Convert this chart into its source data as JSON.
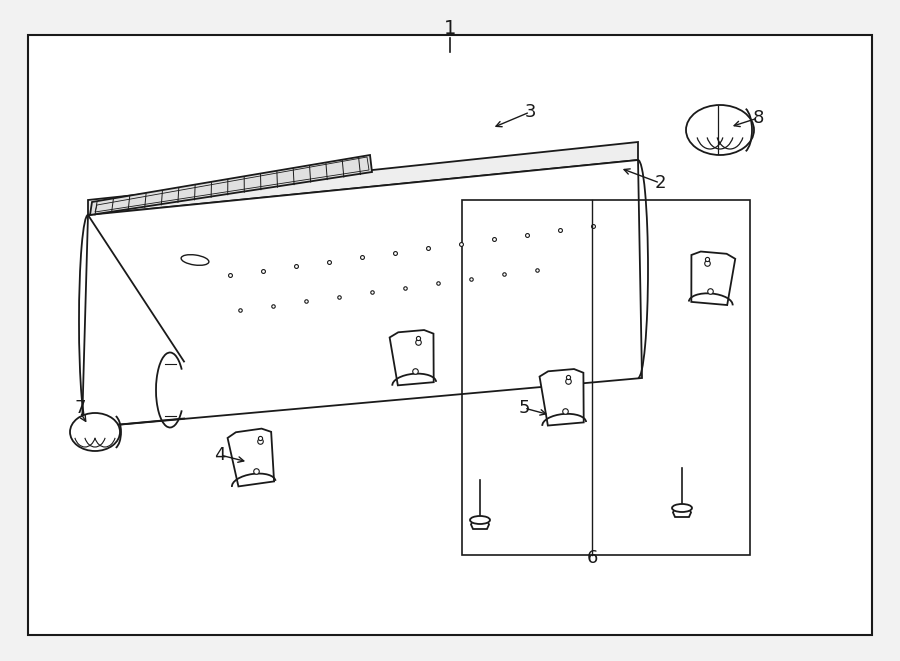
{
  "bg_color": "#f2f2f2",
  "box_bg": "#ffffff",
  "line_color": "#1a1a1a",
  "fig_width": 9.0,
  "fig_height": 6.61,
  "label_fontsize": 13
}
